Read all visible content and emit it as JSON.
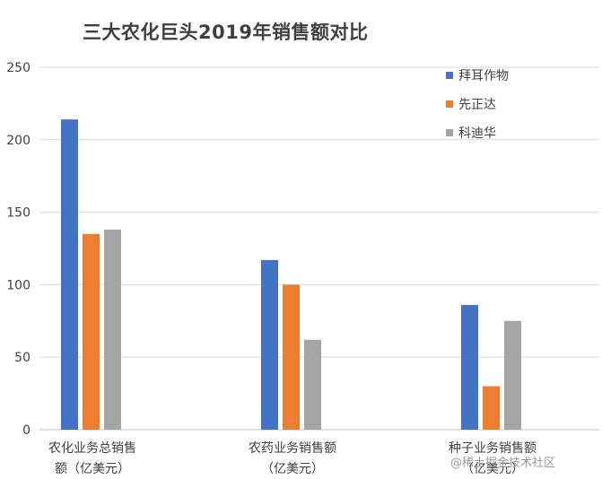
{
  "chart_data": {
    "type": "bar",
    "title": "三大农化巨头2019年销售额对比",
    "categories": [
      [
        "农化业务总销售",
        "额（亿美元）"
      ],
      [
        "农药业务销售额",
        "（亿美元）"
      ],
      [
        "种子业务销售额",
        "（亿美元）"
      ]
    ],
    "series": [
      {
        "name": "拜耳作物",
        "color": "#4472c4",
        "values": [
          214,
          117,
          86
        ]
      },
      {
        "name": "先正达",
        "color": "#ed7d31",
        "values": [
          135,
          100,
          30
        ]
      },
      {
        "name": "科迪华",
        "color": "#a5a5a5",
        "values": [
          138,
          62,
          75
        ]
      }
    ],
    "yticks": [
      "0",
      "50",
      "100",
      "150",
      "200",
      "250"
    ],
    "ylim": [
      0,
      250
    ],
    "grid": true,
    "legend_position": "top-right"
  },
  "watermark": "@稀土掘金技术社区"
}
